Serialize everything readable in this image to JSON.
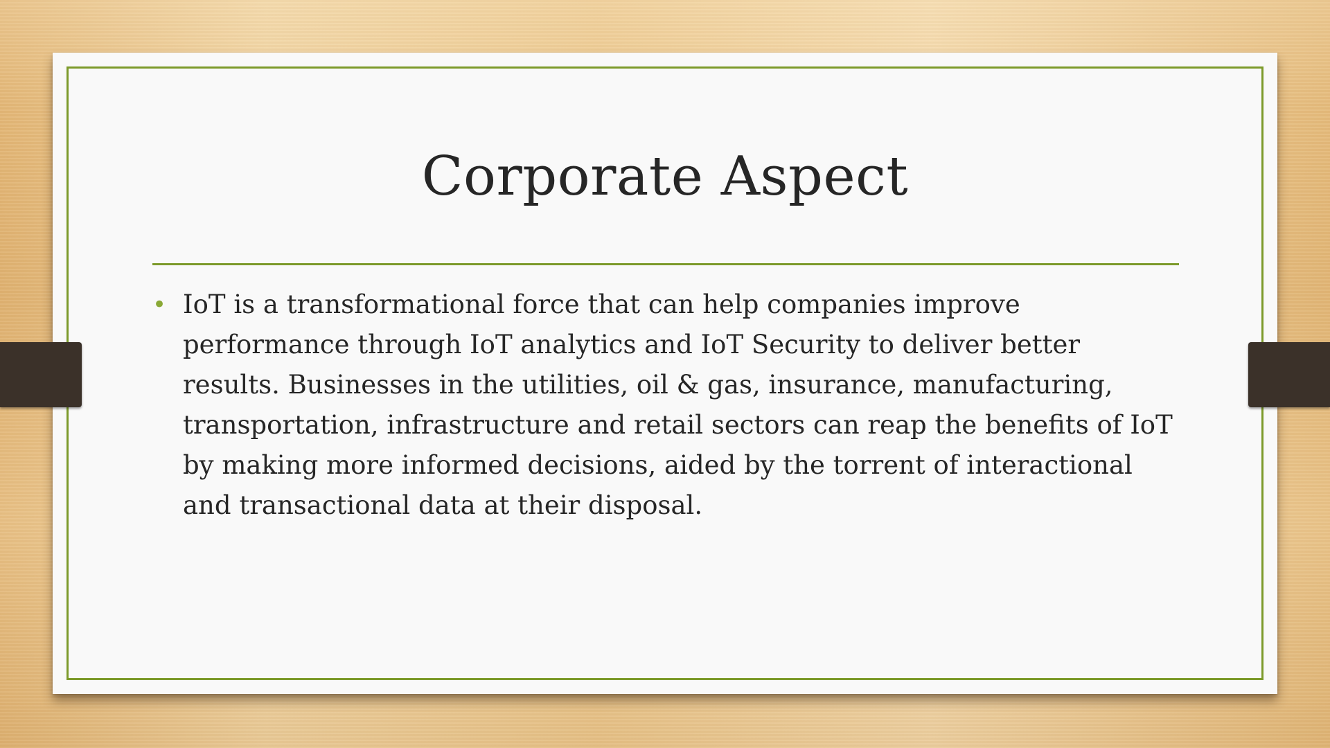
{
  "slide": {
    "title": "Corporate Aspect",
    "bullets": [
      {
        "text": "IoT is a transformational force that can help companies improve performance through IoT analytics and IoT Security to deliver better results. Businesses in the utilities, oil & gas, insurance, manufacturing, transportation, infrastructure and retail sectors can reap the benefits of IoT by making more informed decisions, aided by the torrent of interactional and transactional data at their disposal."
      }
    ],
    "bullet_symbol": "•"
  },
  "colors": {
    "accent": "#7c9a2a",
    "bullet": "#8aa936",
    "text": "#262626",
    "binder": "#3b3129",
    "slide_bg": "#f9f9f9"
  }
}
